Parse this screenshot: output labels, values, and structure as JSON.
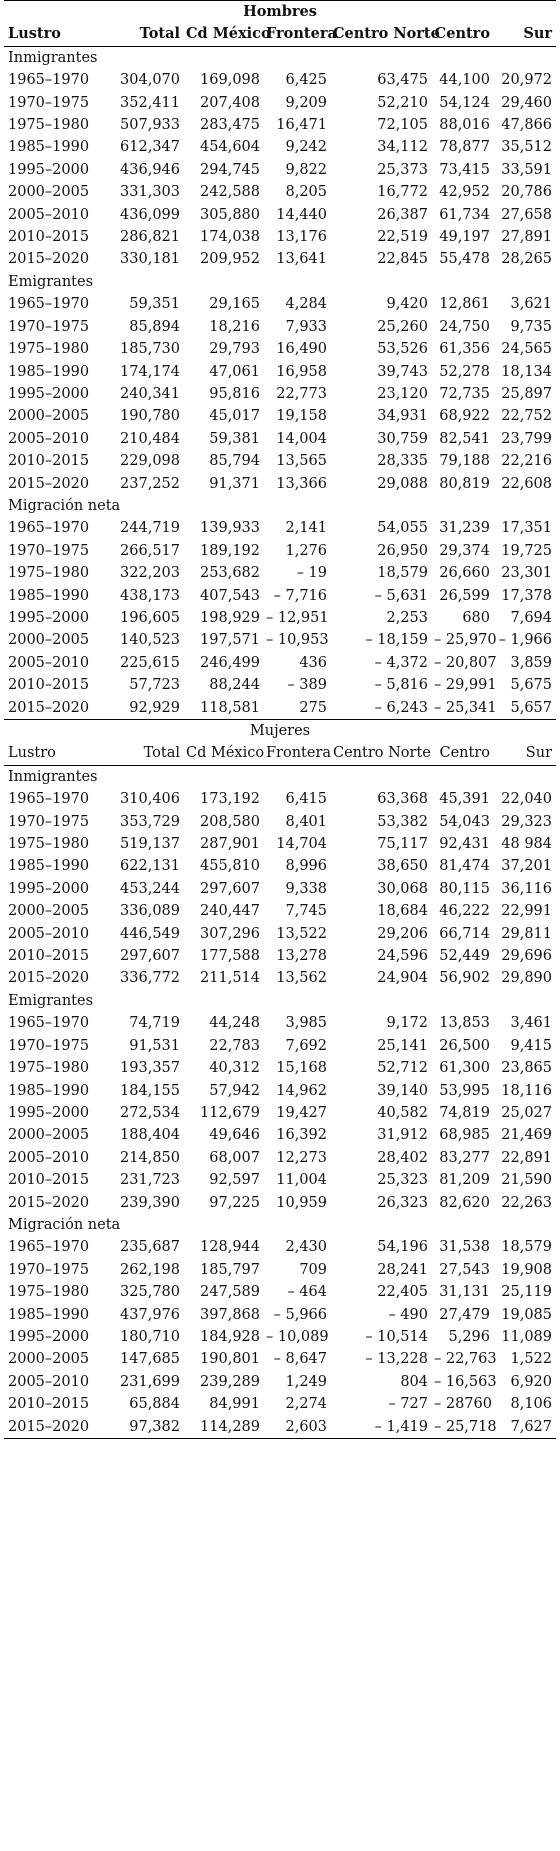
{
  "columns": [
    "Lustro",
    "Total",
    "Cd México",
    "Frontera",
    "Centro Norte",
    "Centro",
    "Sur"
  ],
  "hombres": {
    "title": "Hombres",
    "sections": [
      {
        "label": "Inmigrantes",
        "rows": [
          [
            "1965–1970",
            "304,070",
            "169,098",
            "6,425",
            "63,475",
            "44,100",
            "20,972"
          ],
          [
            "1970–1975",
            "352,411",
            "207,408",
            "9,209",
            "52,210",
            "54,124",
            "29,460"
          ],
          [
            "1975–1980",
            "507,933",
            "283,475",
            "16,471",
            "72,105",
            "88,016",
            "47,866"
          ],
          [
            "1985–1990",
            "612,347",
            "454,604",
            "9,242",
            "34,112",
            "78,877",
            "35,512"
          ],
          [
            "1995–2000",
            "436,946",
            "294,745",
            "9,822",
            "25,373",
            "73,415",
            "33,591"
          ],
          [
            "2000–2005",
            "331,303",
            "242,588",
            "8,205",
            "16,772",
            "42,952",
            "20,786"
          ],
          [
            "2005–2010",
            "436,099",
            "305,880",
            "14,440",
            "26,387",
            "61,734",
            "27,658"
          ],
          [
            "2010–2015",
            "286,821",
            "174,038",
            "13,176",
            "22,519",
            "49,197",
            "27,891"
          ],
          [
            "2015–2020",
            "330,181",
            "209,952",
            "13,641",
            "22,845",
            "55,478",
            "28,265"
          ]
        ]
      },
      {
        "label": "Emigrantes",
        "rows": [
          [
            "1965–1970",
            "59,351",
            "29,165",
            "4,284",
            "9,420",
            "12,861",
            "3,621"
          ],
          [
            "1970–1975",
            "85,894",
            "18,216",
            "7,933",
            "25,260",
            "24,750",
            "9,735"
          ],
          [
            "1975–1980",
            "185,730",
            "29,793",
            "16,490",
            "53,526",
            "61,356",
            "24,565"
          ],
          [
            "1985–1990",
            "174,174",
            "47,061",
            "16,958",
            "39,743",
            "52,278",
            "18,134"
          ],
          [
            "1995–2000",
            "240,341",
            "95,816",
            "22,773",
            "23,120",
            "72,735",
            "25,897"
          ],
          [
            "2000–2005",
            "190,780",
            "45,017",
            "19,158",
            "34,931",
            "68,922",
            "22,752"
          ],
          [
            "2005–2010",
            "210,484",
            "59,381",
            "14,004",
            "30,759",
            "82,541",
            "23,799"
          ],
          [
            "2010–2015",
            "229,098",
            "85,794",
            "13,565",
            "28,335",
            "79,188",
            "22,216"
          ],
          [
            "2015–2020",
            "237,252",
            "91,371",
            "13,366",
            "29,088",
            "80,819",
            "22,608"
          ]
        ]
      },
      {
        "label": "Migración neta",
        "rows": [
          [
            "1965–1970",
            "244,719",
            "139,933",
            "2,141",
            "54,055",
            "31,239",
            "17,351"
          ],
          [
            "1970–1975",
            "266,517",
            "189,192",
            "1,276",
            "26,950",
            "29,374",
            "19,725"
          ],
          [
            "1975–1980",
            "322,203",
            "253,682",
            "– 19",
            "18,579",
            "26,660",
            "23,301"
          ],
          [
            "1985–1990",
            "438,173",
            "407,543",
            "– 7,716",
            "– 5,631",
            "26,599",
            "17,378"
          ],
          [
            "1995–2000",
            "196,605",
            "198,929",
            "– 12,951",
            "2,253",
            "680",
            "7,694"
          ],
          [
            "2000–2005",
            "140,523",
            "197,571",
            "– 10,953",
            "– 18,159",
            "– 25,970",
            "– 1,966"
          ],
          [
            "2005–2010",
            "225,615",
            "246,499",
            "436",
            "– 4,372",
            "– 20,807",
            "3,859"
          ],
          [
            "2010–2015",
            "57,723",
            "88,244",
            "– 389",
            "– 5,816",
            "– 29,991",
            "5,675"
          ],
          [
            "2015–2020",
            "92,929",
            "118,581",
            "275",
            "– 6,243",
            "– 25,341",
            "5,657"
          ]
        ]
      }
    ]
  },
  "mujeres": {
    "title": "Mujeres",
    "sections": [
      {
        "label": "Inmigrantes",
        "rows": [
          [
            "1965–1970",
            "310,406",
            "173,192",
            "6,415",
            "63,368",
            "45,391",
            "22,040"
          ],
          [
            "1970–1975",
            "353,729",
            "208,580",
            "8,401",
            "53,382",
            "54,043",
            "29,323"
          ],
          [
            "1975–1980",
            "519,137",
            "287,901",
            "14,704",
            "75,117",
            "92,431",
            "48 984"
          ],
          [
            "1985–1990",
            "622,131",
            "455,810",
            "8,996",
            "38,650",
            "81,474",
            "37,201"
          ],
          [
            "1995–2000",
            "453,244",
            "297,607",
            "9,338",
            "30,068",
            "80,115",
            "36,116"
          ],
          [
            "2000–2005",
            "336,089",
            "240,447",
            "7,745",
            "18,684",
            "46,222",
            "22,991"
          ],
          [
            "2005–2010",
            "446,549",
            "307,296",
            "13,522",
            "29,206",
            "66,714",
            "29,811"
          ],
          [
            "2010–2015",
            "297,607",
            "177,588",
            "13,278",
            "24,596",
            "52,449",
            "29,696"
          ],
          [
            "2015–2020",
            "336,772",
            "211,514",
            "13,562",
            "24,904",
            "56,902",
            "29,890"
          ]
        ]
      },
      {
        "label": "Emigrantes",
        "rows": [
          [
            "1965–1970",
            "74,719",
            "44,248",
            "3,985",
            "9,172",
            "13,853",
            "3,461"
          ],
          [
            "1970–1975",
            "91,531",
            "22,783",
            "7,692",
            "25,141",
            "26,500",
            "9,415"
          ],
          [
            "1975–1980",
            "193,357",
            "40,312",
            "15,168",
            "52,712",
            "61,300",
            "23,865"
          ],
          [
            "1985–1990",
            "184,155",
            "57,942",
            "14,962",
            "39,140",
            "53,995",
            "18,116"
          ],
          [
            "1995–2000",
            "272,534",
            "112,679",
            "19,427",
            "40,582",
            "74,819",
            "25,027"
          ],
          [
            "2000–2005",
            "188,404",
            "49,646",
            "16,392",
            "31,912",
            "68,985",
            "21,469"
          ],
          [
            "2005–2010",
            "214,850",
            "68,007",
            "12,273",
            "28,402",
            "83,277",
            "22,891"
          ],
          [
            "2010–2015",
            "231,723",
            "92,597",
            "11,004",
            "25,323",
            "81,209",
            "21,590"
          ],
          [
            "2015–2020",
            "239,390",
            "97,225",
            "10,959",
            "26,323",
            "82,620",
            "22,263"
          ]
        ]
      },
      {
        "label": "Migración neta",
        "rows": [
          [
            "1965–1970",
            "235,687",
            "128,944",
            "2,430",
            "54,196",
            "31,538",
            "18,579"
          ],
          [
            "1970–1975",
            "262,198",
            "185,797",
            "709",
            "28,241",
            "27,543",
            "19,908"
          ],
          [
            "1975–1980",
            "325,780",
            "247,589",
            "– 464",
            "22,405",
            "31,131",
            "25,119"
          ],
          [
            "1985–1990",
            "437,976",
            "397,868",
            "– 5,966",
            "– 490",
            "27,479",
            "19,085"
          ],
          [
            "1995–2000",
            "180,710",
            "184,928",
            "– 10,089",
            "– 10,514",
            "5,296",
            "11,089"
          ],
          [
            "2000–2005",
            "147,685",
            "190,801",
            "– 8,647",
            "– 13,228",
            "– 22,763",
            "1,522"
          ],
          [
            "2005–2010",
            "231,699",
            "239,289",
            "1,249",
            "804",
            "– 16,563",
            "6,920"
          ],
          [
            "2010–2015",
            "65,884",
            "84,991",
            "2,274",
            "– 727",
            "– 28760",
            "8,106"
          ],
          [
            "2015–2020",
            "97,382",
            "114,289",
            "2,603",
            "– 1,419",
            "– 25,718",
            "7,627"
          ]
        ]
      }
    ]
  }
}
